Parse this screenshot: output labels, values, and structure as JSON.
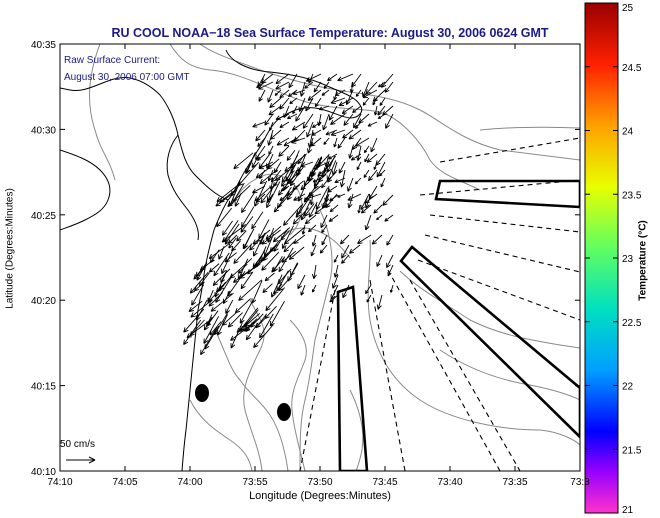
{
  "title": "RU COOL  NOAA−18  Sea Surface Temperature:  August 30, 2006 0624 GMT",
  "annotation": {
    "line1": "Raw Surface Current:",
    "line2": "August 30, 2006 07:00 GMT"
  },
  "scale": {
    "label": "50 cm/s"
  },
  "axes": {
    "xlabel": "Longitude (Degrees:Minutes)",
    "ylabel": "Latitude (Degrees:Minutes)",
    "x_ticks": [
      "74:10",
      "74:05",
      "74:00",
      "73:55",
      "73:50",
      "73:45",
      "73:40",
      "73:35",
      "73:3"
    ],
    "y_ticks": [
      "40:35",
      "40:30",
      "40:25",
      "40:20",
      "40:15",
      "40:10"
    ]
  },
  "colorbar": {
    "label": "Temperature (°C)",
    "ticks": [
      "25",
      "24.5",
      "24",
      "23.5",
      "23",
      "22.5",
      "22",
      "21.5",
      "21"
    ],
    "min": 21,
    "max": 25,
    "colors": [
      "#ff33cc",
      "#7700ff",
      "#0000ff",
      "#00a0ff",
      "#00e0c0",
      "#60ff60",
      "#e8ff00",
      "#ffa000",
      "#ff2000",
      "#990000"
    ]
  }
}
